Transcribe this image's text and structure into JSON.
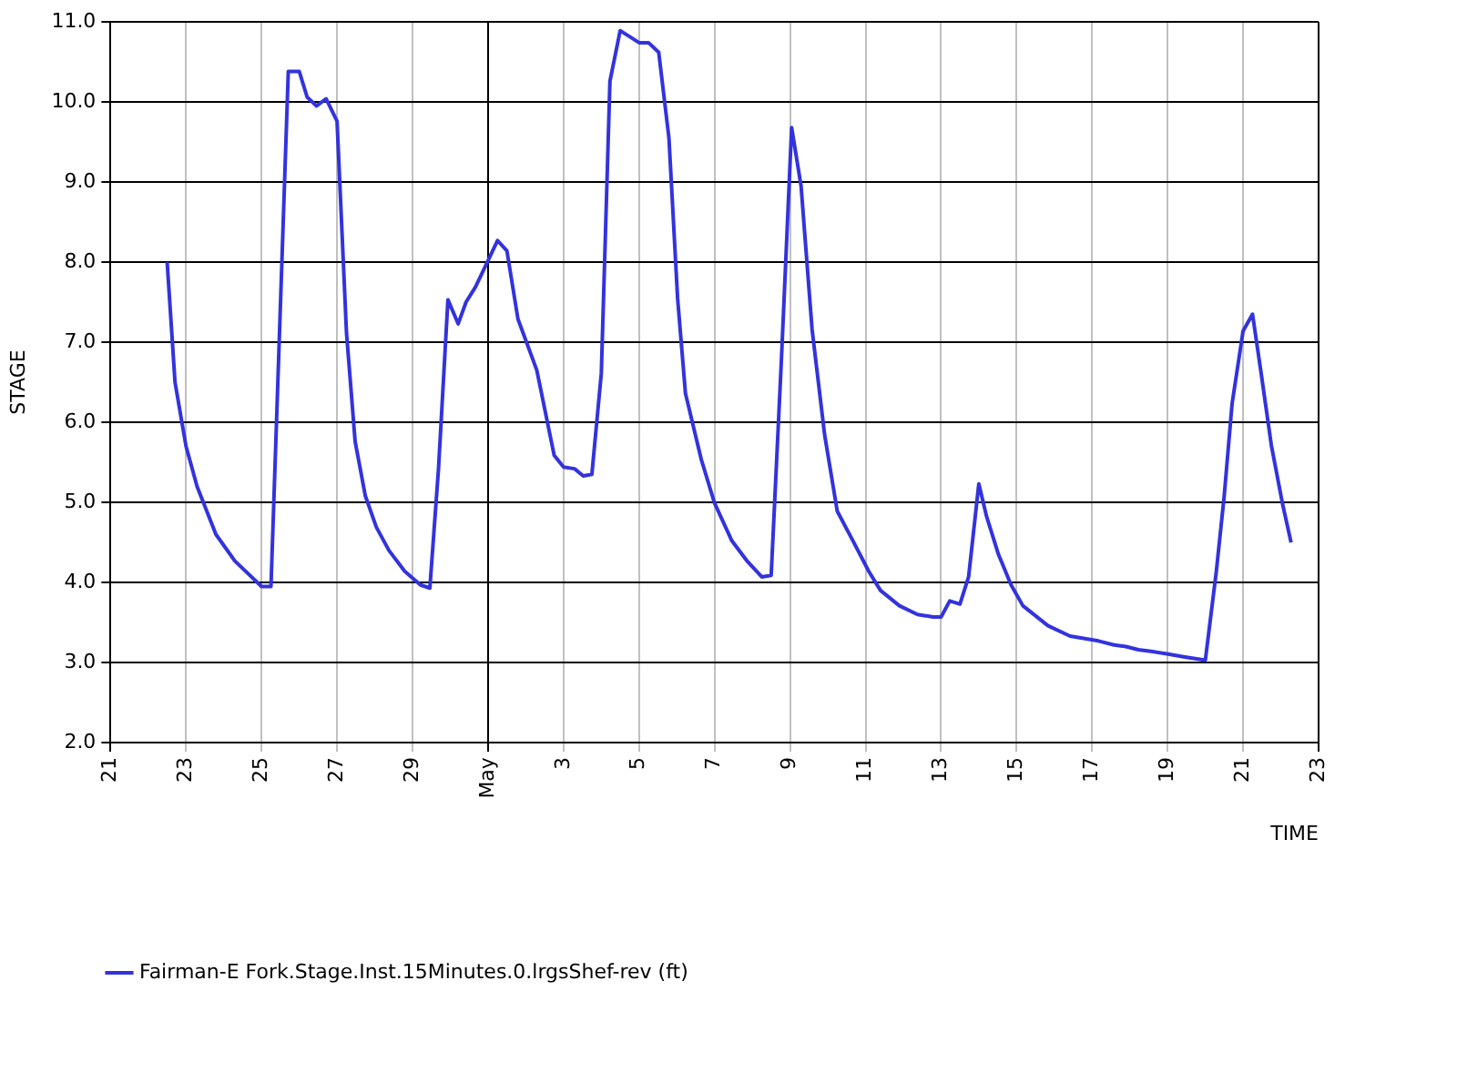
{
  "chart_data": {
    "type": "line",
    "xlabel": "TIME",
    "ylabel": "STAGE",
    "legend": "bottom",
    "grid": true,
    "marker": "none",
    "line_style": "solid",
    "xlim": [
      "--04-21",
      "--05-23"
    ],
    "xticks": [
      {
        "value": "--04-21",
        "label": "21"
      },
      {
        "value": "--04-23",
        "label": "23"
      },
      {
        "value": "--04-25",
        "label": "25"
      },
      {
        "value": "--04-27",
        "label": "27"
      },
      {
        "value": "--04-29",
        "label": "29"
      },
      {
        "value": "--05-01",
        "label": "May"
      },
      {
        "value": "--05-03",
        "label": "3"
      },
      {
        "value": "--05-05",
        "label": "5"
      },
      {
        "value": "--05-07",
        "label": "7"
      },
      {
        "value": "--05-09",
        "label": "9"
      },
      {
        "value": "--05-11",
        "label": "11"
      },
      {
        "value": "--05-13",
        "label": "13"
      },
      {
        "value": "--05-15",
        "label": "15"
      },
      {
        "value": "--05-17",
        "label": "17"
      },
      {
        "value": "--05-19",
        "label": "19"
      },
      {
        "value": "--05-21",
        "label": "21"
      },
      {
        "value": "--05-23",
        "label": "23"
      }
    ],
    "ylim": [
      2,
      11
    ],
    "yticks": [
      {
        "value": 2,
        "label": "2.0"
      },
      {
        "value": 3,
        "label": "3.0"
      },
      {
        "value": 4,
        "label": "4.0"
      },
      {
        "value": 5,
        "label": "5.0"
      },
      {
        "value": 6,
        "label": "6.0"
      },
      {
        "value": 7,
        "label": "7.0"
      },
      {
        "value": 8,
        "label": "8.0"
      },
      {
        "value": 9,
        "label": "9.0"
      },
      {
        "value": 10,
        "label": "10.0"
      },
      {
        "value": 11,
        "label": "11.0"
      }
    ],
    "x": [
      "--04-22T12:00",
      "--04-22T17:00",
      "--04-23T00:00",
      "--04-23T07:00",
      "--04-23T19:00",
      "--04-24T07:00",
      "--04-25T00:00",
      "--04-25T06:00",
      "--04-25T17:00",
      "--04-26T00:00",
      "--04-26T05:00",
      "--04-26T11:00",
      "--04-26T17:00",
      "--04-27T00:00",
      "--04-27T06:00",
      "--04-27T11:30",
      "--04-27T18:00",
      "--04-28T01:00",
      "--04-28T09:00",
      "--04-28T19:00",
      "--04-29T05:00",
      "--04-29T11:00",
      "--04-29T16:30",
      "--04-29T22:30",
      "--04-30T05:00",
      "--04-30T10:00",
      "--04-30T16:00",
      "--05-01T00:00",
      "--05-01T06:00",
      "--05-01T12:00",
      "--05-01T19:00",
      "--05-02T07:00",
      "--05-02T18:00",
      "--05-03T00:00",
      "--05-03T07:00",
      "--05-03T12:30",
      "--05-03T18:00",
      "--05-04T00:00",
      "--05-04T05:30",
      "--05-04T12:00",
      "--05-05T00:00",
      "--05-05T06:00",
      "--05-05T12:30",
      "--05-05T19:00",
      "--05-06T00:30",
      "--05-06T05:30",
      "--05-06T15:30",
      "--05-07T00:00",
      "--05-07T11:00",
      "--05-07T21:00",
      "--05-08T06:00",
      "--05-08T12:00",
      "--05-08T18:30",
      "--05-09T01:00",
      "--05-09T07:00",
      "--05-09T14:00",
      "--05-09T22:00",
      "--05-10T06:00",
      "--05-10T16:00",
      "--05-11T02:00",
      "--05-11T09:30",
      "--05-11T21:30",
      "--05-12T09:00",
      "--05-12T19:00",
      "--05-13T00:00",
      "--05-13T05:30",
      "--05-13T12:00",
      "--05-13T17:30",
      "--05-14T00:00",
      "--05-14T05:00",
      "--05-14T12:30",
      "--05-14T20:30",
      "--05-15T04:00",
      "--05-15T20:00",
      "--05-16T10:00",
      "--05-17T04:00",
      "--05-17T14:00",
      "--05-17T21:30",
      "--05-18T05:30",
      "--05-18T13:30",
      "--05-18T23:30",
      "--05-19T11:00",
      "--05-20T00:00",
      "--05-20T07:00",
      "--05-20T12:00",
      "--05-20T17:00",
      "--05-21T00:00",
      "--05-21T06:00",
      "--05-21T11:30",
      "--05-21T18:00",
      "--05-22T01:00",
      "--05-22T06:30"
    ],
    "series": [
      {
        "name": "Fairman-E Fork.Stage.Inst.15Minutes.0.lrgsShef-rev (ft)",
        "color": "#3333dd",
        "values": [
          8.0,
          6.5,
          5.7,
          5.2,
          4.6,
          4.27,
          3.95,
          3.95,
          10.38,
          10.38,
          10.06,
          9.95,
          10.04,
          9.76,
          7.12,
          5.76,
          5.08,
          4.69,
          4.4,
          4.14,
          3.97,
          3.93,
          5.42,
          7.53,
          7.23,
          7.5,
          7.69,
          8.02,
          8.27,
          8.14,
          7.29,
          6.65,
          5.59,
          5.44,
          5.42,
          5.33,
          5.35,
          6.61,
          10.26,
          10.89,
          10.74,
          10.74,
          10.62,
          9.55,
          7.55,
          6.36,
          5.54,
          4.99,
          4.52,
          4.26,
          4.07,
          4.09,
          6.78,
          9.68,
          8.95,
          7.16,
          5.84,
          4.89,
          4.52,
          4.14,
          3.9,
          3.71,
          3.6,
          3.57,
          3.57,
          3.77,
          3.73,
          4.07,
          5.23,
          4.82,
          4.35,
          3.97,
          3.71,
          3.46,
          3.33,
          3.27,
          3.22,
          3.2,
          3.16,
          3.14,
          3.11,
          3.07,
          3.03,
          4.14,
          5.08,
          6.23,
          7.14,
          7.35,
          6.61,
          5.71,
          4.99,
          4.5
        ]
      }
    ]
  }
}
